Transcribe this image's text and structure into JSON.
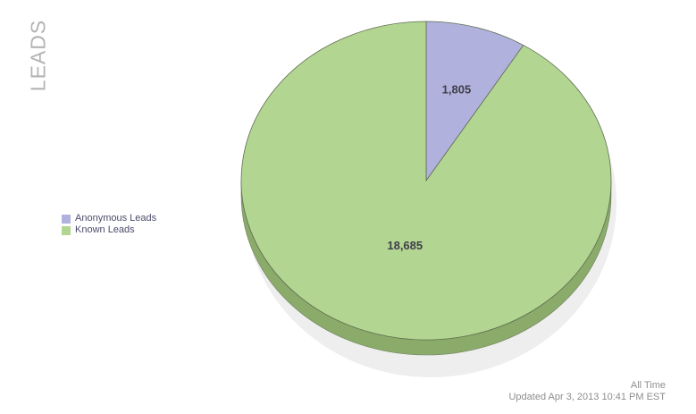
{
  "chart_data": {
    "type": "pie",
    "title": "LEADS",
    "categories": [
      "Anonymous Leads",
      "Known Leads"
    ],
    "values": [
      1805,
      18685
    ],
    "value_labels": [
      "1,805",
      "18,685"
    ],
    "colors": [
      "#b1b1dd",
      "#b2d591"
    ],
    "side_colors": [
      "#8a8ab5",
      "#8aab6a"
    ],
    "legend_position": "left",
    "style": "3d"
  },
  "footer": {
    "period": "All Time",
    "updated": "Updated Apr 3, 2013 10:41 PM EST"
  }
}
